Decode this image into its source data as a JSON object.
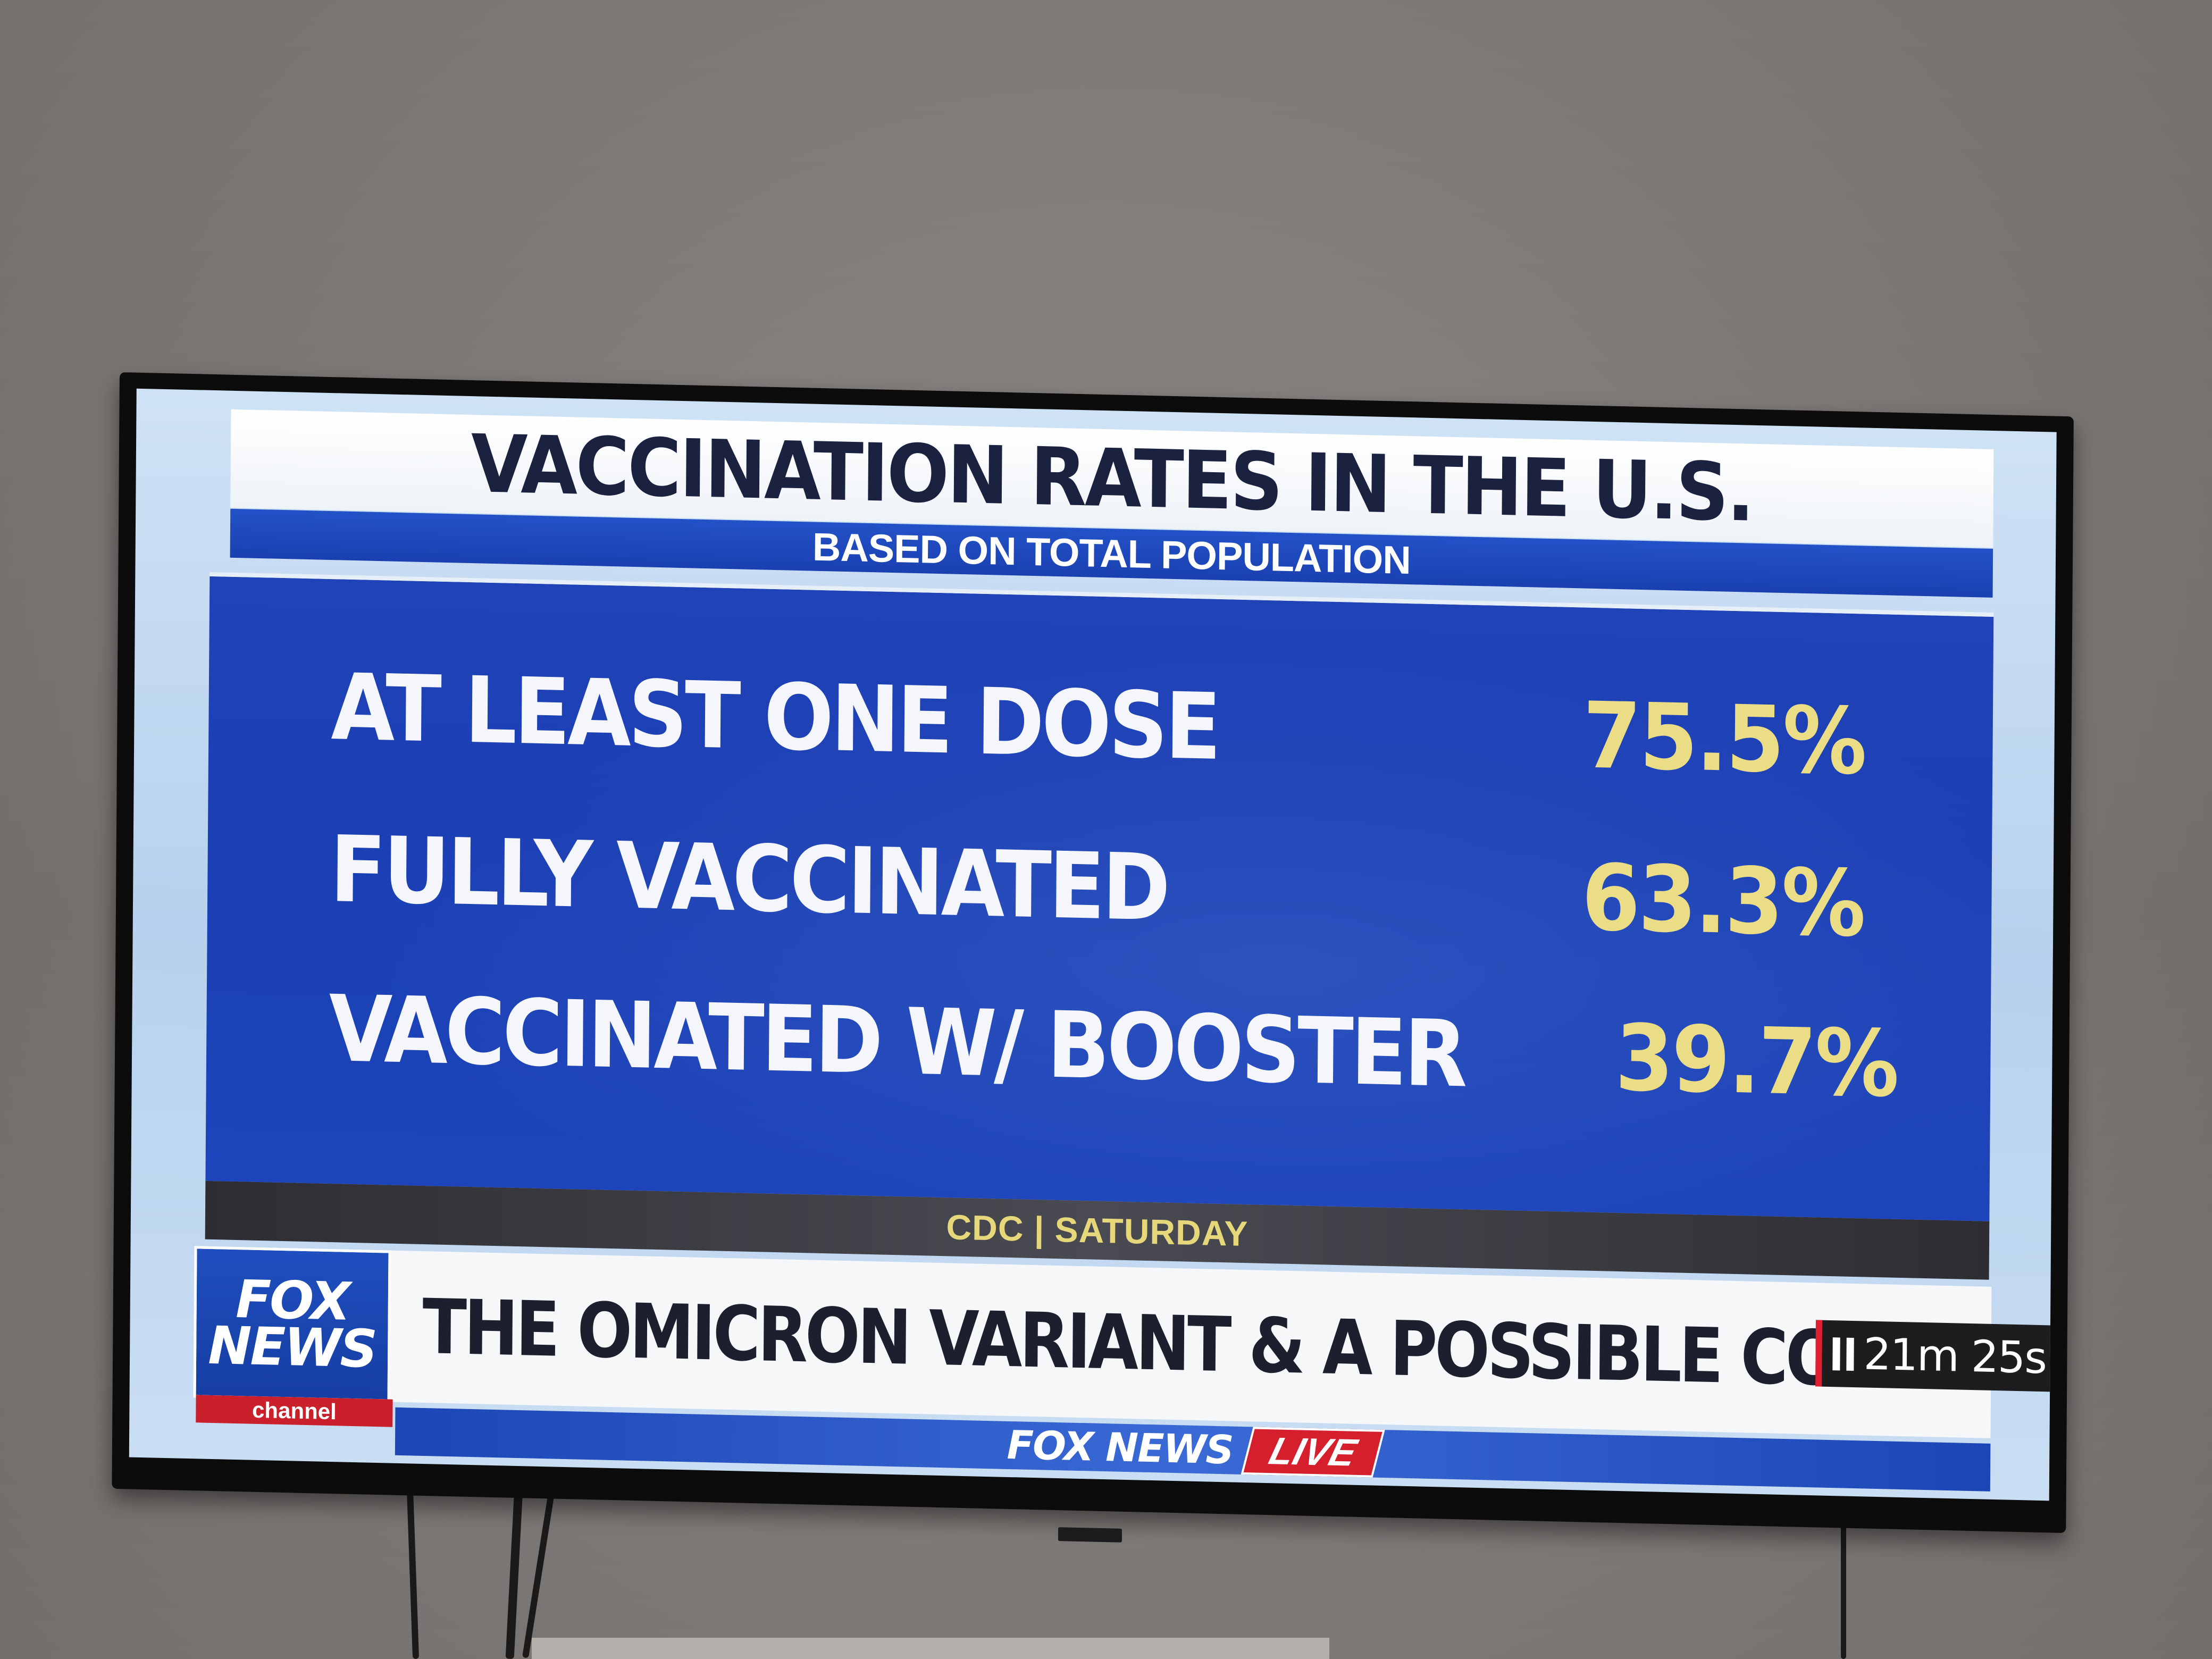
{
  "graphic": {
    "title": "VACCINATION RATES IN THE U.S.",
    "subtitle": "BASED ON TOTAL POPULATION",
    "rows": [
      {
        "label": "AT LEAST ONE DOSE",
        "value": "75.5%"
      },
      {
        "label": "FULLY VACCINATED",
        "value": "63.3%"
      },
      {
        "label": "VACCINATED W/ BOOSTER",
        "value": "39.7%"
      }
    ],
    "source": "CDC | SATURDAY"
  },
  "lower_third": {
    "logo_top": "FOX",
    "logo_bottom": "NEWS",
    "logo_channel": "channel",
    "headline": "THE OMICRON VARIANT & A POSSIBLE COVID OFF RAMP",
    "timer": "21m 25s",
    "brand": "FOX NEWS",
    "live": "LIVE"
  },
  "colors": {
    "panel_blue": "#1b3fb4",
    "value_yellow": "#ebdc86",
    "live_red": "#d61f2c",
    "wall": "#857f7c"
  }
}
